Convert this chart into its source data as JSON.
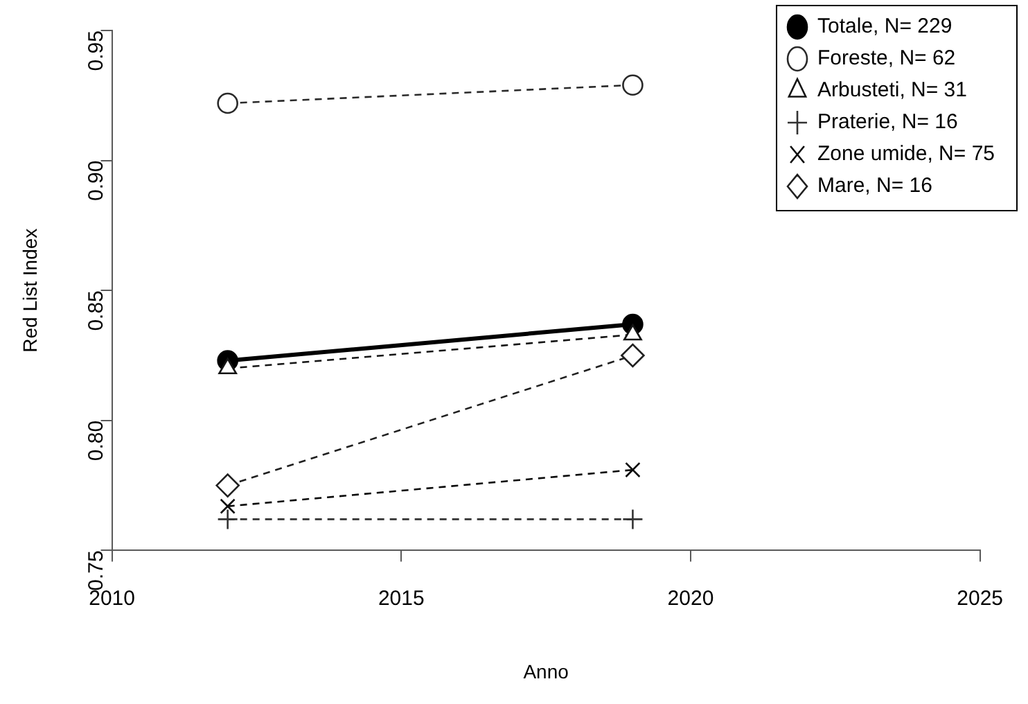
{
  "chart_data": {
    "type": "line",
    "xlabel": "Anno",
    "ylabel": "Red List Index",
    "x": [
      2012,
      2019
    ],
    "xlim": [
      2010,
      2025
    ],
    "xticks": [
      2010,
      2015,
      2020,
      2025
    ],
    "ylim": [
      0.75,
      0.95
    ],
    "yticks": [
      0.75,
      {
        "value": 0.8,
        "label": "0.80"
      },
      0.85,
      {
        "value": 0.9,
        "label": "0.90"
      },
      0.95
    ],
    "grid": false,
    "legend": "top right",
    "series": [
      {
        "name": "Totale, N= 229",
        "color": "#000000",
        "values": [
          0.823,
          0.837
        ],
        "marker": "circle",
        "line_style": "solid"
      },
      {
        "name": "Foreste, N= 62",
        "color": "#2a2a2a",
        "values": [
          0.922,
          0.929
        ],
        "marker": "circle",
        "line_style": "dashed"
      },
      {
        "name": "Arbusteti, N= 31",
        "color": "#151515",
        "values": [
          0.82,
          0.833
        ],
        "marker": "triangle",
        "line_style": "dashed"
      },
      {
        "name": "Praterie, N= 16",
        "color": "#333333",
        "values": [
          0.762,
          0.762
        ],
        "marker": "plus",
        "line_style": "dashed"
      },
      {
        "name": "Zone umide, N= 75",
        "color": "#0a0a0a",
        "values": [
          0.767,
          0.781
        ],
        "marker": "cross",
        "line_style": "dashed"
      },
      {
        "name": "Mare, N= 16",
        "color": "#202020",
        "values": [
          0.775,
          0.825
        ],
        "marker": "diamond",
        "line_style": "dashed"
      }
    ]
  }
}
